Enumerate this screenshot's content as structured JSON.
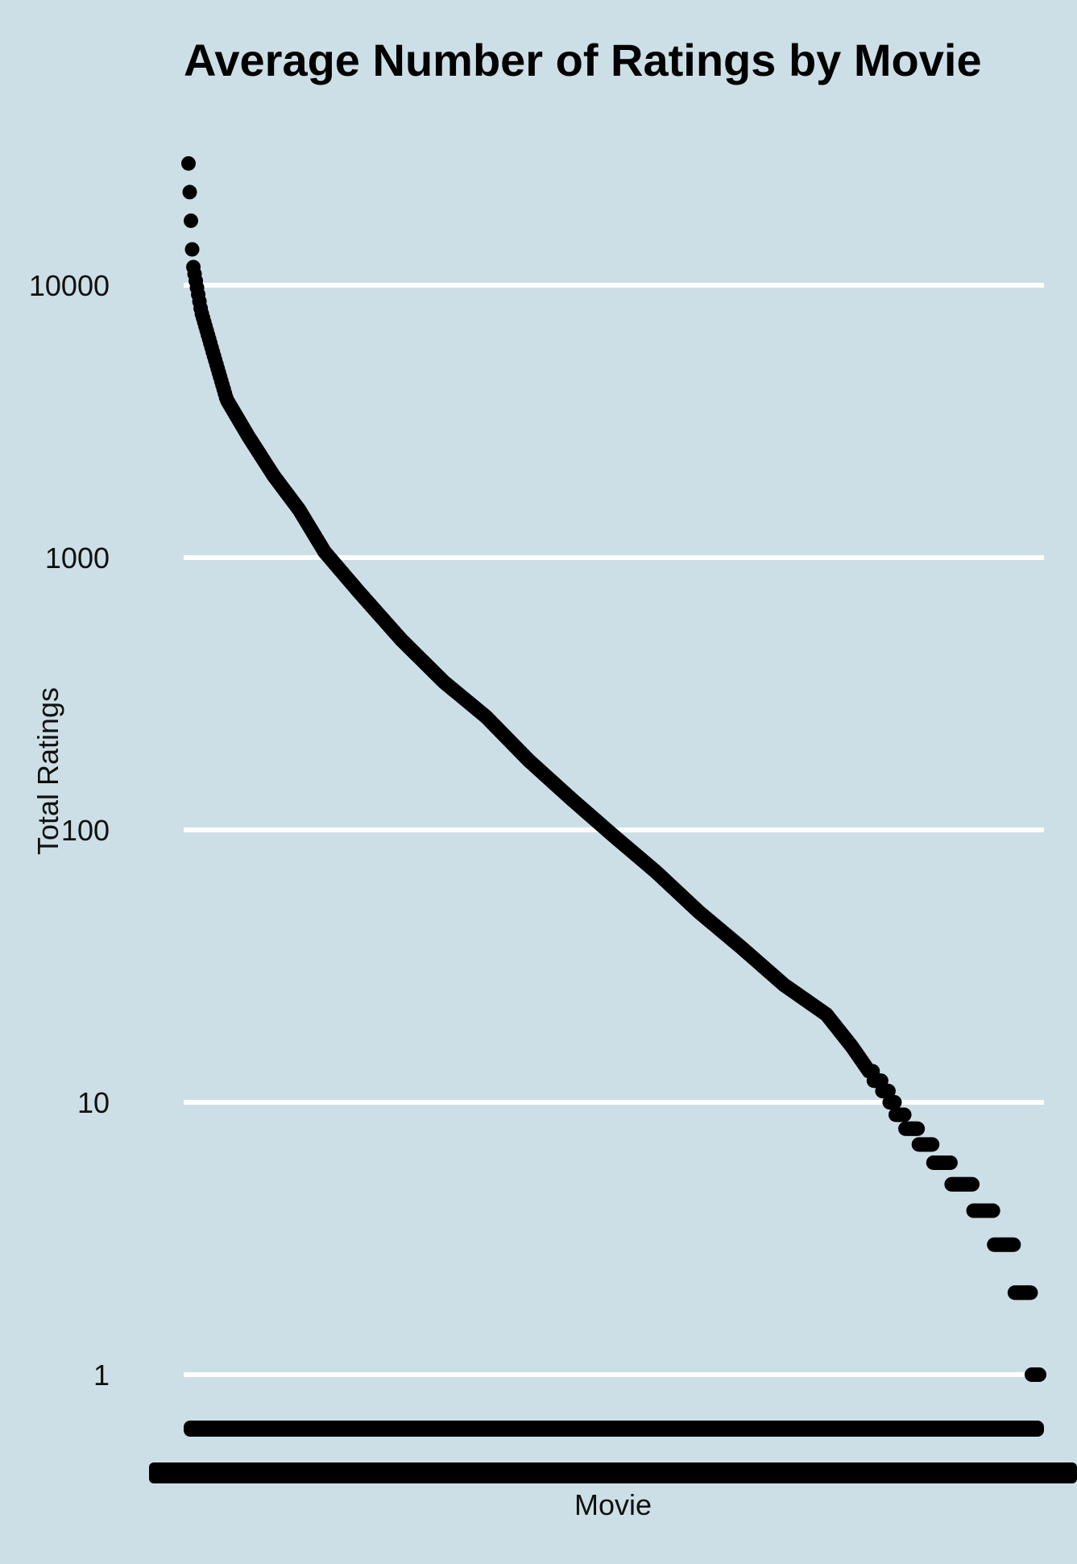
{
  "chart_data": {
    "type": "scatter",
    "title": "Average Number of Ratings by Movie",
    "xlabel": "Movie",
    "ylabel": "Total Ratings",
    "y_scale": "log10",
    "ylim": [
      0.45,
      30000
    ],
    "y_ticks": [
      {
        "value": 1,
        "label": "1"
      },
      {
        "value": 10,
        "label": "10"
      },
      {
        "value": 100,
        "label": "100"
      },
      {
        "value": 1000,
        "label": "1000"
      },
      {
        "value": 10000,
        "label": "10000"
      }
    ],
    "grid": true,
    "legend": "none",
    "x_tick_labels": "overplotted (illegible)",
    "point_color": "#000000",
    "background_color": "#cddfe6",
    "grid_color": "#ffffff",
    "series": [
      {
        "values": [
          [
            0.0,
            28000
          ],
          [
            0.005,
            12000
          ],
          [
            0.015,
            8000
          ],
          [
            0.03,
            5500
          ],
          [
            0.045,
            3800
          ],
          [
            0.07,
            2800
          ],
          [
            0.1,
            2000
          ],
          [
            0.13,
            1500
          ],
          [
            0.16,
            1050
          ],
          [
            0.2,
            750
          ],
          [
            0.25,
            500
          ],
          [
            0.3,
            350
          ],
          [
            0.35,
            260
          ],
          [
            0.4,
            180
          ],
          [
            0.45,
            130
          ],
          [
            0.5,
            95
          ],
          [
            0.55,
            70
          ],
          [
            0.6,
            50
          ],
          [
            0.65,
            37
          ],
          [
            0.7,
            27
          ],
          [
            0.75,
            21
          ],
          [
            0.78,
            16
          ],
          [
            0.8,
            13
          ],
          [
            0.82,
            11
          ],
          [
            0.835,
            9
          ],
          [
            0.85,
            8
          ],
          [
            0.865,
            7
          ],
          [
            0.885,
            6
          ],
          [
            0.91,
            5
          ],
          [
            0.935,
            4
          ],
          [
            0.96,
            3
          ],
          [
            0.985,
            2
          ],
          [
            1.0,
            1
          ]
        ]
      }
    ]
  }
}
